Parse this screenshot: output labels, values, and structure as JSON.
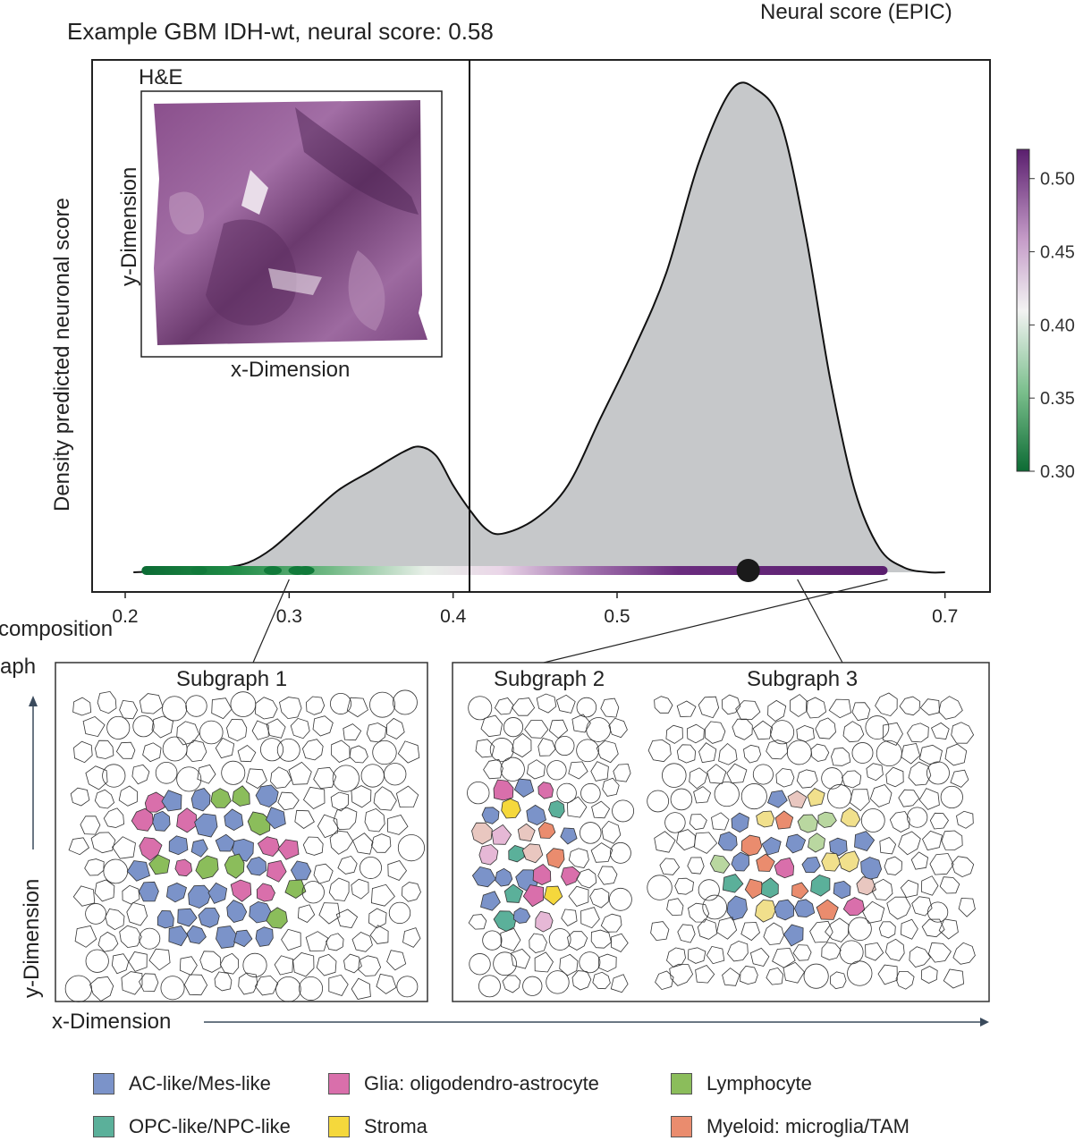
{
  "figure": {
    "title": "Example GBM IDH-wt, neural score: 0.58",
    "colorbar_title": "Neural score (EPIC)",
    "y_axis_label": "Density predicted neuronal score",
    "left_cut_line1": "composition",
    "left_cut_line2": "aph",
    "bottom_x_label": "x-Dimension",
    "bottom_y_label": "y-Dimension",
    "inset": {
      "title": "H&E",
      "x_label": "x-Dimension",
      "y_label": "y-Dimension"
    },
    "subgraphs": {
      "s1": "Subgraph 1",
      "s2": "Subgraph 2",
      "s3": "Subgraph 3"
    },
    "colorbar_ticks": [
      "0.50",
      "0.45",
      "0.40",
      "0.35",
      "0.30"
    ],
    "colors": {
      "density_fill": "#c6c8ca",
      "cb_low": "#0c6b34",
      "cb_mid": "#f2f2f2",
      "cb_high": "#5a1e6e",
      "ac_mes": "#7b93c9",
      "glia": "#d96fab",
      "lymph": "#8bbd5b",
      "opc_npc": "#5bb09a",
      "stroma": "#f5d83c",
      "myeloid": "#ea8c6e"
    }
  },
  "legend": [
    {
      "label": "AC-like/Mes-like",
      "color": "#7b93c9"
    },
    {
      "label": "Glia: oligodendro-astrocyte",
      "color": "#d96fab"
    },
    {
      "label": "Lymphocyte",
      "color": "#8bbd5b"
    },
    {
      "label": "OPC-like/NPC-like",
      "color": "#5bb09a"
    },
    {
      "label": "Stroma",
      "color": "#f5d83c"
    },
    {
      "label": "Myeloid: microglia/TAM",
      "color": "#ea8c6e"
    }
  ],
  "chart_data": {
    "type": "area",
    "title": "Example GBM IDH-wt, neural score: 0.58",
    "xlabel": "",
    "ylabel": "Density predicted neuronal score",
    "xlim": [
      0.2,
      0.72
    ],
    "x_ticks": [
      "0.2",
      "0.3",
      "0.4",
      "0.5",
      "0.7"
    ],
    "x_tick_values": [
      0.2,
      0.3,
      0.4,
      0.5,
      0.7
    ],
    "density_x": [
      0.205,
      0.24,
      0.26,
      0.275,
      0.29,
      0.31,
      0.33,
      0.35,
      0.37,
      0.38,
      0.39,
      0.4,
      0.41,
      0.42,
      0.43,
      0.45,
      0.47,
      0.49,
      0.51,
      0.53,
      0.55,
      0.57,
      0.585,
      0.6,
      0.615,
      0.63,
      0.645,
      0.66,
      0.675,
      0.69,
      0.7
    ],
    "density_y": [
      0.0,
      0.005,
      0.01,
      0.02,
      0.05,
      0.11,
      0.17,
      0.21,
      0.25,
      0.26,
      0.24,
      0.18,
      0.13,
      0.09,
      0.08,
      0.11,
      0.18,
      0.32,
      0.46,
      0.62,
      0.85,
      1.0,
      1.0,
      0.93,
      0.7,
      0.4,
      0.17,
      0.05,
      0.01,
      0.0,
      0.0
    ],
    "vertical_line_x": 0.41,
    "sample_marker_x": 0.58,
    "strip_range": [
      0.21,
      0.665
    ],
    "colorbar": {
      "min": 0.3,
      "max": 0.52,
      "ticks": [
        0.5,
        0.45,
        0.4,
        0.35,
        0.3
      ]
    },
    "callouts": [
      {
        "label": "Subgraph 1",
        "x": 0.3
      },
      {
        "label": "Subgraph 2",
        "x": 0.665
      },
      {
        "label": "Subgraph 3",
        "x": 0.61
      }
    ]
  }
}
